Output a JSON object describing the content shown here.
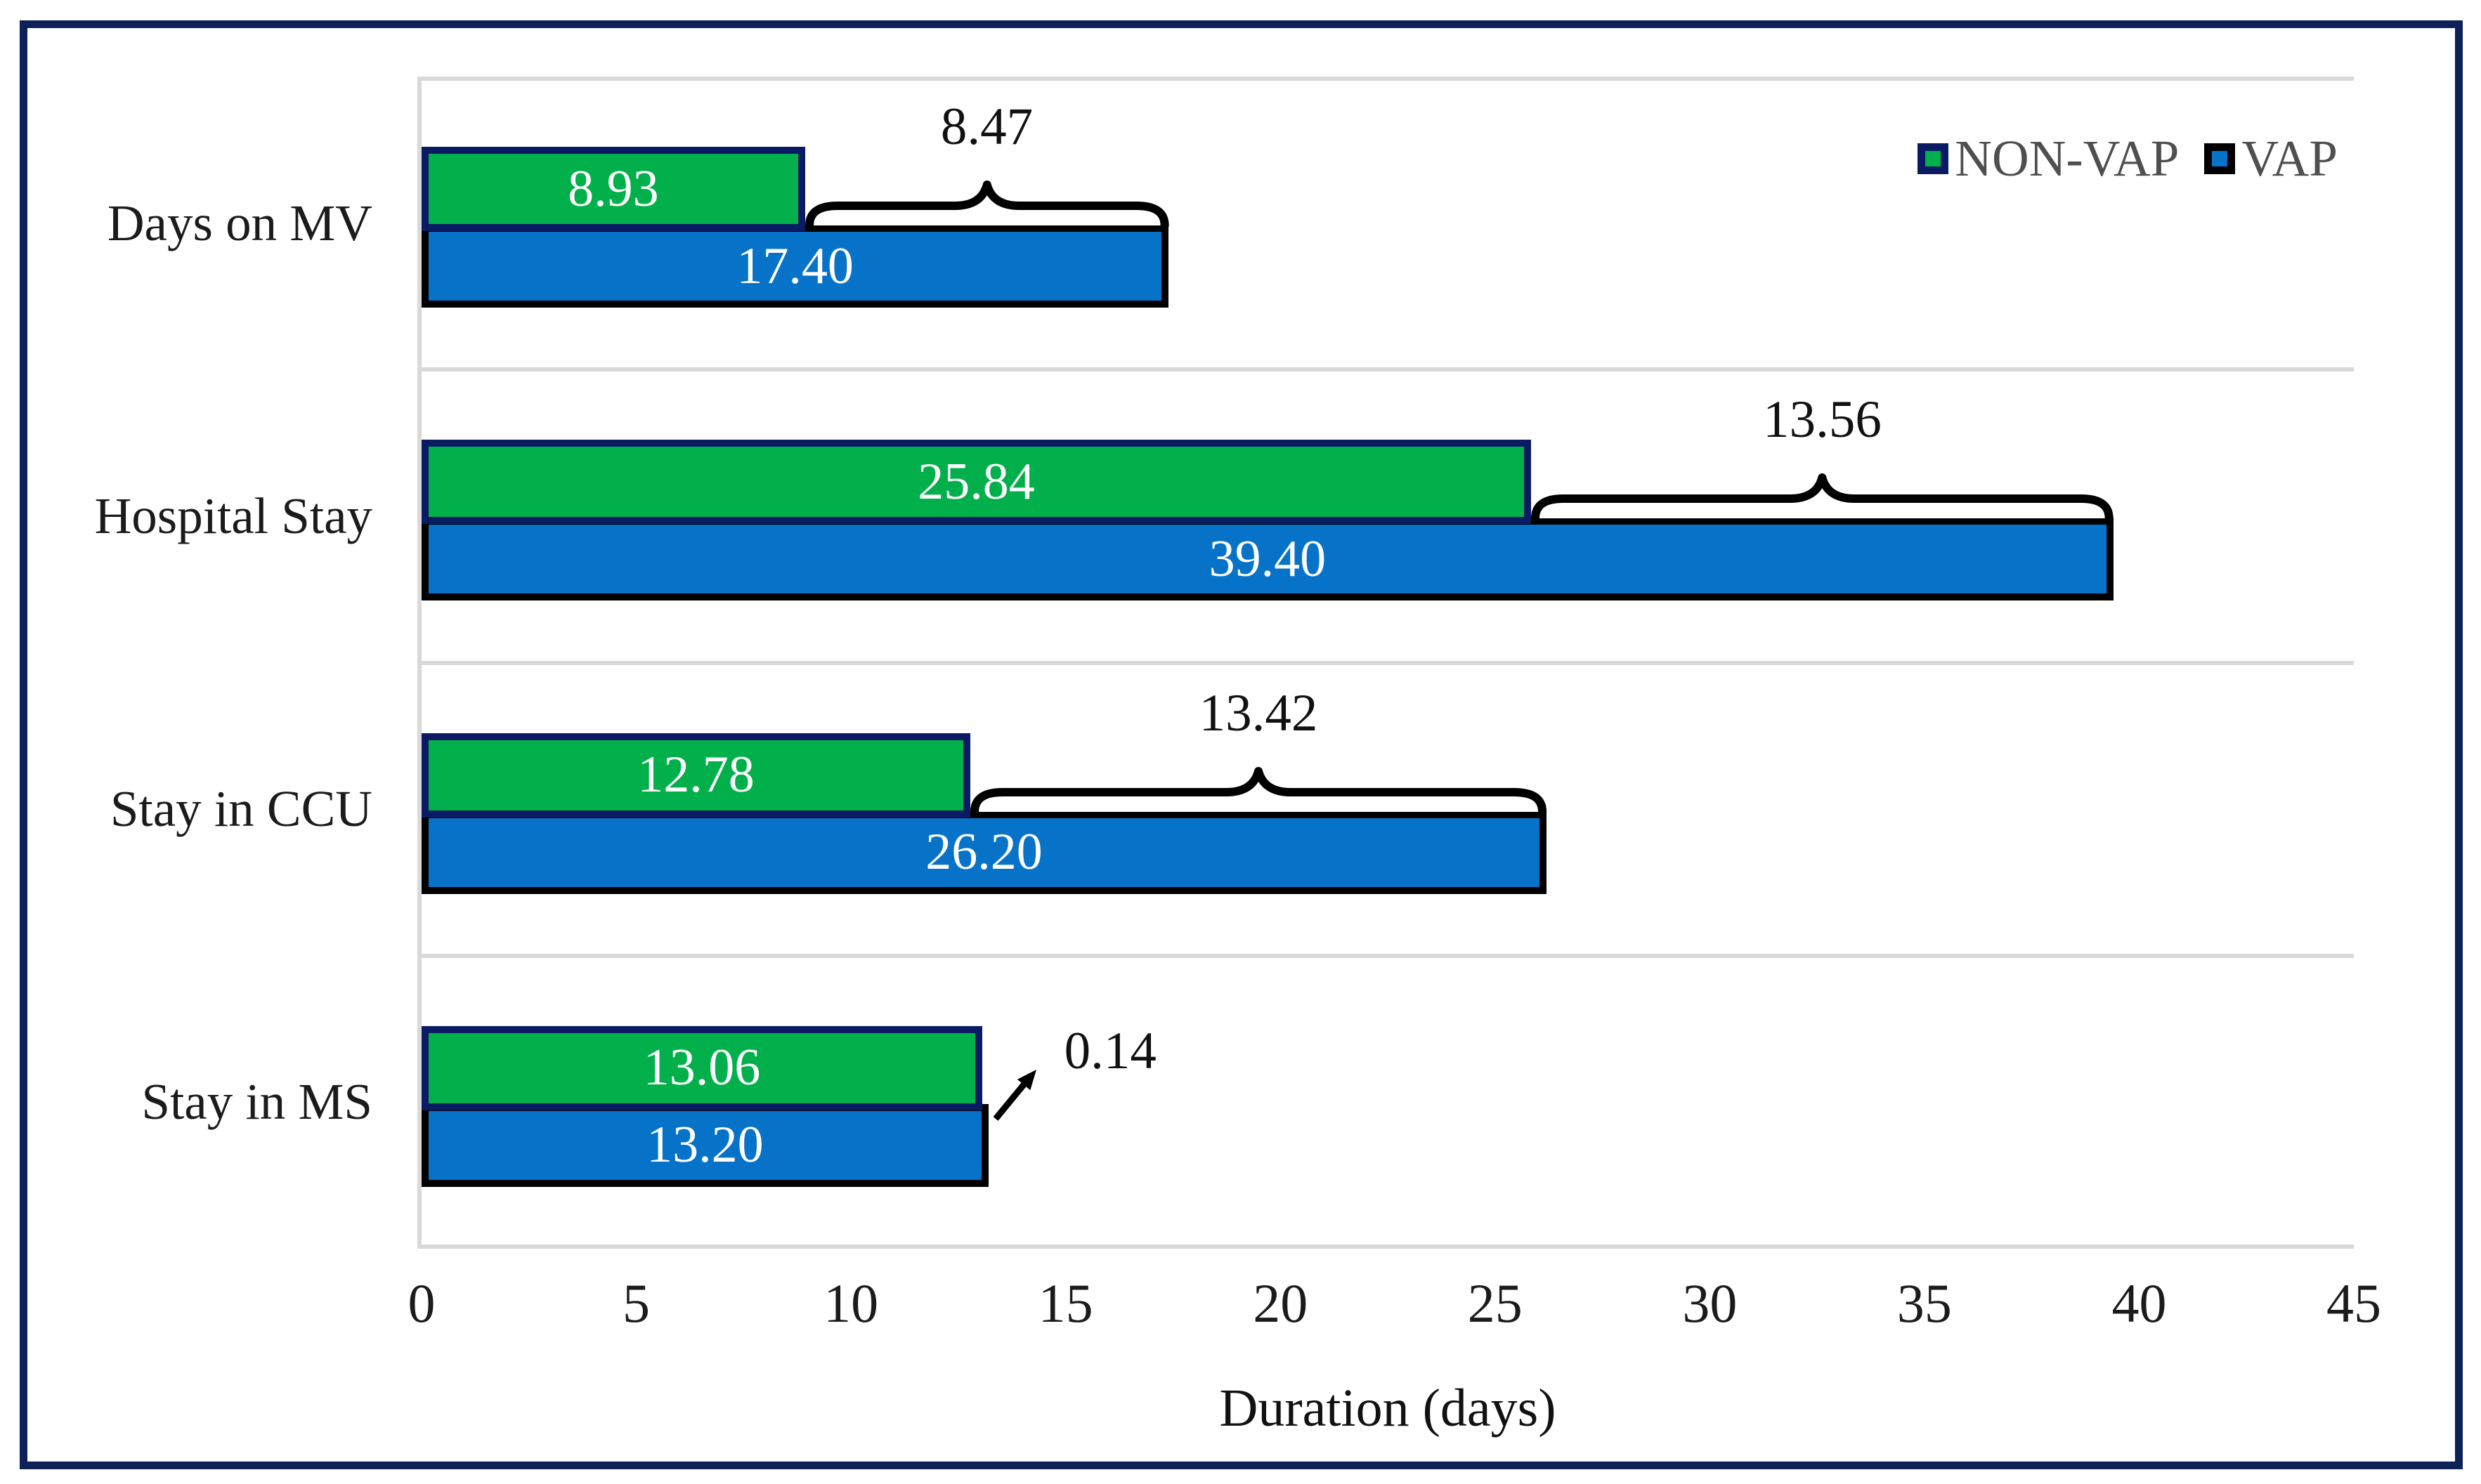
{
  "figure": {
    "border_color": "#0D2057",
    "background": "#FFFFFF"
  },
  "legend": {
    "position": "top-right",
    "text_color": "#4F4F4F",
    "items": [
      {
        "label": "NON-VAP",
        "swatch_color": "#02B04B",
        "swatch_border": "#0A1B63"
      },
      {
        "label": "VAP",
        "swatch_color": "#0673C8",
        "swatch_border": "#000000"
      }
    ]
  },
  "chart_data": {
    "type": "bar",
    "orientation": "horizontal",
    "title": "",
    "xlabel": "Duration (days)",
    "ylabel": "",
    "xlim": [
      0,
      45
    ],
    "xticks": [
      0,
      5,
      10,
      15,
      20,
      25,
      30,
      35,
      40,
      45
    ],
    "grid": "category-separators-only",
    "gridline_color": "#D9D9D9",
    "value_label_color": "#FFFFFF",
    "tick_color": "#1B1B1B",
    "categories": [
      "Days on MV",
      "Hospital Stay",
      "Stay in CCU",
      "Stay in MS"
    ],
    "series": [
      {
        "name": "NON-VAP",
        "color": "#02B04B",
        "border_color": "#0A1B63",
        "values": [
          8.93,
          25.84,
          12.78,
          13.06
        ],
        "value_labels": [
          "8.93",
          "25.84",
          "12.78",
          "13.06"
        ]
      },
      {
        "name": "VAP",
        "color": "#0673C8",
        "border_color": "#000000",
        "values": [
          17.4,
          39.4,
          26.2,
          13.2
        ],
        "value_labels": [
          "17.40",
          "39.40",
          "26.20",
          "13.20"
        ]
      }
    ],
    "difference_annotations": [
      {
        "category": "Days on MV",
        "label": "8.47",
        "style": "brace"
      },
      {
        "category": "Hospital Stay",
        "label": "13.56",
        "style": "brace"
      },
      {
        "category": "Stay in CCU",
        "label": "13.42",
        "style": "brace"
      },
      {
        "category": "Stay in MS",
        "label": "0.14",
        "style": "arrow"
      }
    ]
  }
}
